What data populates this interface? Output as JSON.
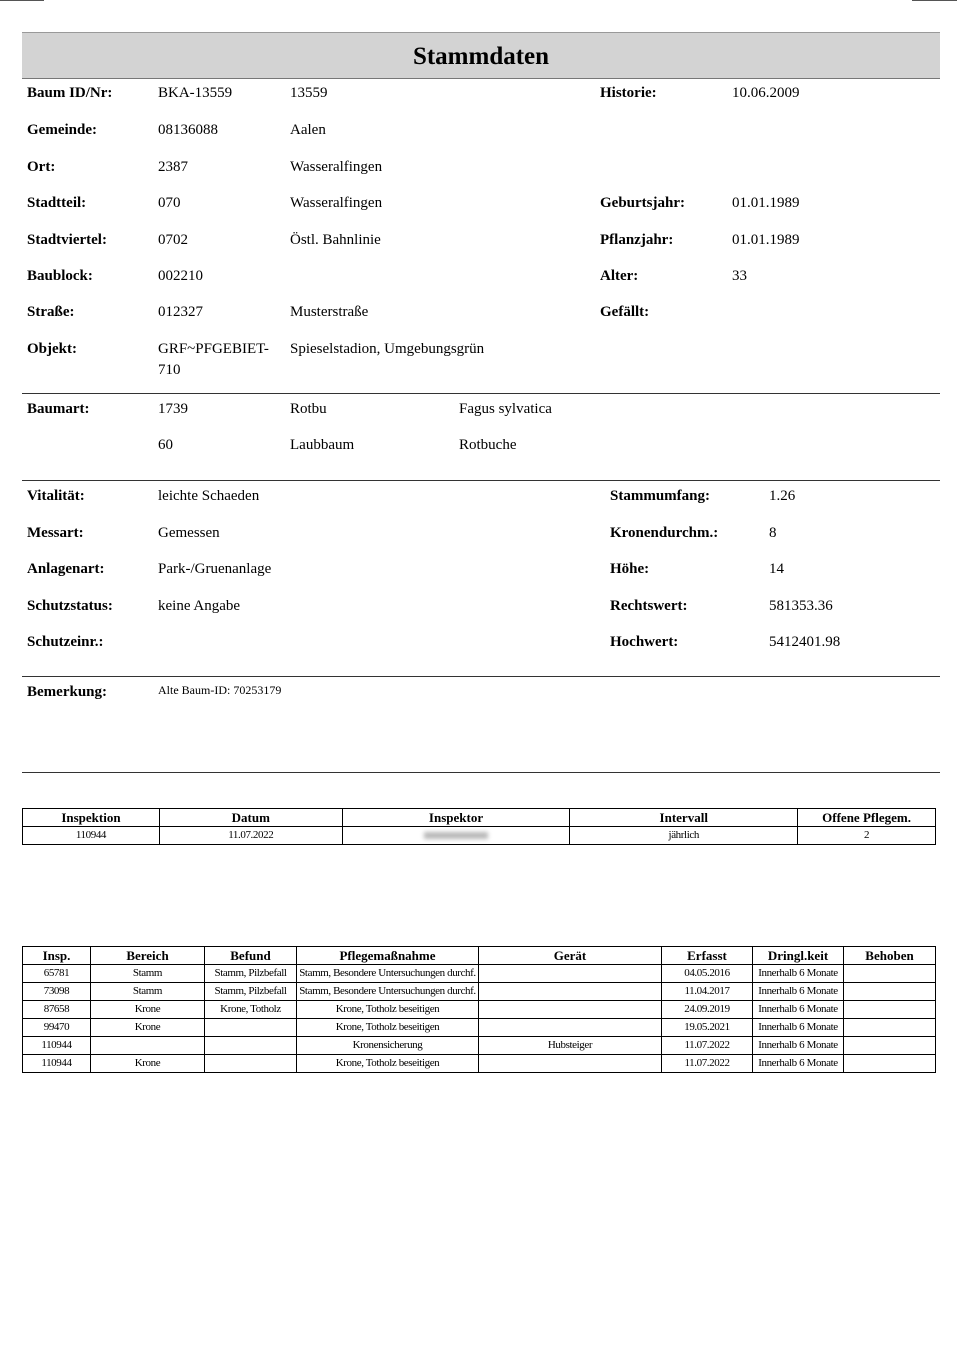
{
  "title": "Stammdaten",
  "stamm": [
    {
      "label": "Baum ID/Nr:",
      "v1": "BKA-13559",
      "v2": "13559",
      "rlabel": "Historie:",
      "rvalue": "10.06.2009"
    },
    {
      "label": "Gemeinde:",
      "v1": "08136088",
      "v2": "Aalen",
      "rlabel": "",
      "rvalue": ""
    },
    {
      "label": "Ort:",
      "v1": "2387",
      "v2": "Wasseralfingen",
      "rlabel": "",
      "rvalue": ""
    },
    {
      "label": "Stadtteil:",
      "v1": "070",
      "v2": "Wasseralfingen",
      "rlabel": "Geburtsjahr:",
      "rvalue": "01.01.1989"
    },
    {
      "label": "Stadtviertel:",
      "v1": "0702",
      "v2": "Östl. Bahnlinie",
      "rlabel": "Pflanzjahr:",
      "rvalue": "01.01.1989"
    },
    {
      "label": "Baublock:",
      "v1": "002210",
      "v2": "",
      "rlabel": "Alter:",
      "rvalue": "33"
    },
    {
      "label": "Straße:",
      "v1": "012327",
      "v2": "Musterstraße",
      "rlabel": "Gefällt:",
      "rvalue": ""
    },
    {
      "label": "Objekt:",
      "v1": "GRF~PFGEBIET-\n710",
      "v2": "Spieselstadion, Umgebungsgrün",
      "rlabel": "",
      "rvalue": ""
    }
  ],
  "baumart": {
    "label": "Baumart:",
    "rows": [
      [
        "1739",
        "Rotbu",
        "Fagus sylvatica"
      ],
      [
        "60",
        "Laubbaum",
        "Rotbuche"
      ]
    ]
  },
  "zustand": [
    {
      "label": "Vitalität:",
      "value": "leichte Schaeden",
      "rlabel": "Stammumfang:",
      "rvalue": "1.26"
    },
    {
      "label": "Messart:",
      "value": "Gemessen",
      "rlabel": "Kronendurchm.:",
      "rvalue": "8"
    },
    {
      "label": "Anlagenart:",
      "value": "Park-/Gruenanlage",
      "rlabel": "Höhe:",
      "rvalue": "14"
    },
    {
      "label": "Schutzstatus:",
      "value": "keine Angabe",
      "rlabel": "Rechtswert:",
      "rvalue": "581353.36"
    },
    {
      "label": "Schutzeinr.:",
      "value": "",
      "rlabel": "Hochwert:",
      "rvalue": "5412401.98"
    }
  ],
  "bemerkung": {
    "label": "Bemerkung:",
    "value": "Alte Baum-ID: 70253179"
  },
  "inspektion": {
    "headers": [
      "Inspektion",
      "Datum",
      "Inspektor",
      "Intervall",
      "Offene Pflegem."
    ],
    "row": [
      "110944",
      "11.07.2022",
      "",
      "jährlich",
      "2"
    ]
  },
  "massnahmen": {
    "headers": [
      "Insp.",
      "Bereich",
      "Befund",
      "Pflegemaßnahme",
      "Gerät",
      "Erfasst",
      "Dringl.keit",
      "Behoben"
    ],
    "rows": [
      [
        "65781",
        "Stamm",
        "Stamm, Pilzbefall",
        "Stamm, Besondere Untersuchungen durchf.",
        "",
        "04.05.2016",
        "Innerhalb 6 Monate",
        ""
      ],
      [
        "73098",
        "Stamm",
        "Stamm, Pilzbefall",
        "Stamm, Besondere Untersuchungen durchf.",
        "",
        "11.04.2017",
        "Innerhalb 6 Monate",
        ""
      ],
      [
        "87658",
        "Krone",
        "Krone, Totholz",
        "Krone, Totholz beseitigen",
        "",
        "24.09.2019",
        "Innerhalb 6 Monate",
        ""
      ],
      [
        "99470",
        "Krone",
        "",
        "Krone, Totholz beseitigen",
        "",
        "19.05.2021",
        "Innerhalb 6 Monate",
        ""
      ],
      [
        "110944",
        "",
        "",
        "Kronensicherung",
        "Hubsteiger",
        "11.07.2022",
        "Innerhalb 6 Monate",
        ""
      ],
      [
        "110944",
        "Krone",
        "",
        "Krone, Totholz beseitigen",
        "",
        "11.07.2022",
        "Innerhalb 6 Monate",
        ""
      ]
    ]
  }
}
